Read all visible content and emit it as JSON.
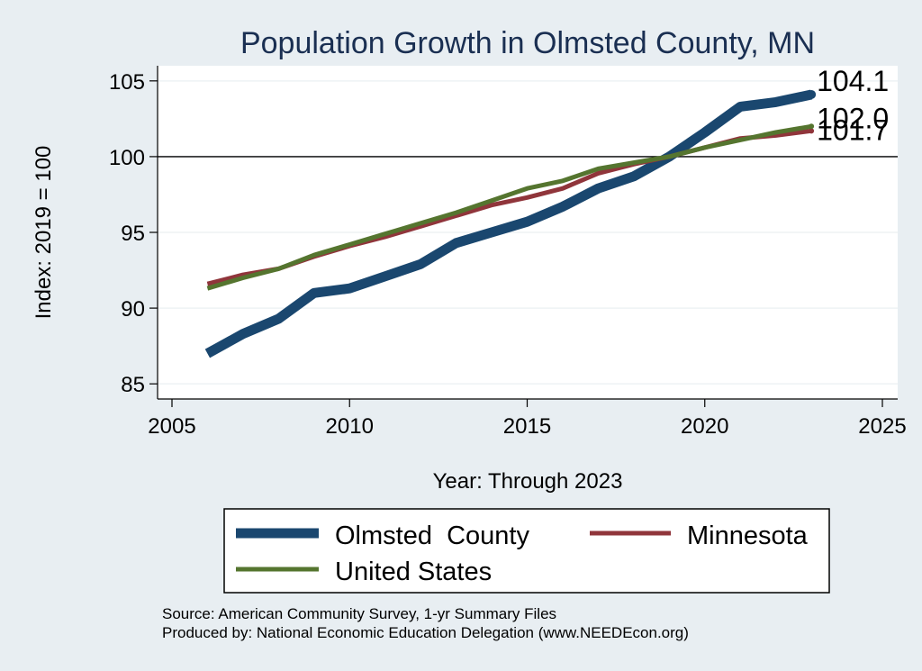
{
  "chart_data": {
    "type": "line",
    "title": "Population Growth in Olmsted County, MN",
    "xlabel": "Year: Through 2023",
    "ylabel": "Index: 2019 = 100",
    "xlim": [
      2005,
      2025
    ],
    "ylim": [
      84,
      106
    ],
    "xticks": [
      2005,
      2010,
      2015,
      2020,
      2025
    ],
    "yticks": [
      85,
      90,
      95,
      100,
      105
    ],
    "reference_line": 100,
    "grid": true,
    "legend_position": "bottom",
    "x": [
      2006,
      2007,
      2008,
      2009,
      2010,
      2011,
      2012,
      2013,
      2014,
      2015,
      2016,
      2017,
      2018,
      2019,
      2020,
      2021,
      2022,
      2023
    ],
    "series": [
      {
        "name": "Olmsted  County",
        "color": "#1a476f",
        "values": [
          87.0,
          88.3,
          89.3,
          91.0,
          91.3,
          92.1,
          92.9,
          94.3,
          95.0,
          95.7,
          96.7,
          97.9,
          98.7,
          100.0,
          101.6,
          103.3,
          103.6,
          104.1
        ],
        "end_label": "104.1"
      },
      {
        "name": "Minnesota",
        "color": "#90353b",
        "values": [
          91.6,
          92.2,
          92.6,
          93.4,
          94.1,
          94.7,
          95.4,
          96.1,
          96.8,
          97.3,
          97.9,
          98.9,
          99.5,
          100.0,
          100.6,
          101.2,
          101.4,
          101.7
        ],
        "end_label": "101.7"
      },
      {
        "name": "United States",
        "color": "#55752f",
        "values": [
          91.3,
          92.0,
          92.6,
          93.5,
          94.2,
          94.9,
          95.6,
          96.3,
          97.1,
          97.9,
          98.4,
          99.2,
          99.6,
          100.0,
          100.6,
          101.1,
          101.6,
          102.0
        ],
        "end_label": "102.0"
      }
    ]
  },
  "source_lines": [
    "Source: American Community Survey, 1-yr Summary Files",
    "Produced by: National Economic Education Delegation (www.NEEDEcon.org)"
  ]
}
